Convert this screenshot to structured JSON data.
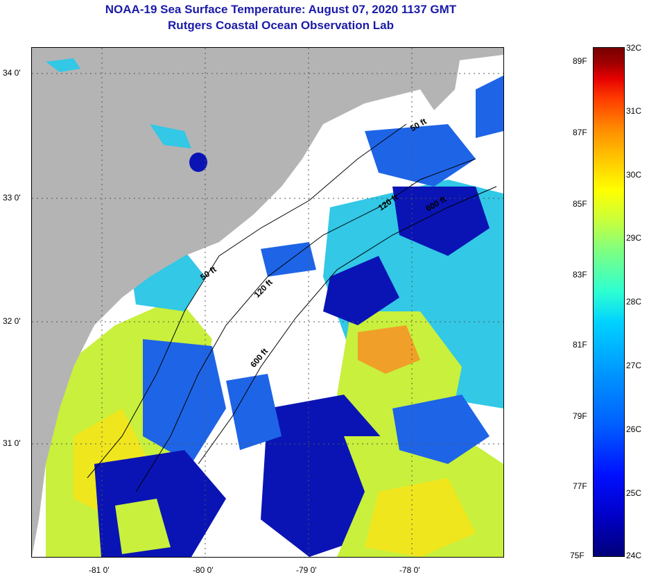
{
  "title": {
    "line1": "NOAA-19 Sea Surface Temperature:  August 07, 2020 1137 GMT",
    "line2": "Rutgers Coastal Ocean Observation Lab"
  },
  "axes": {
    "longitude_labels": [
      "-81 0'",
      "-80 0'",
      "-79 0'",
      "-78 0'"
    ],
    "latitude_labels": [
      "34 0'",
      "33 0'",
      "32 0'",
      "31 0'"
    ]
  },
  "contours": {
    "label_50": "50 ft",
    "label_120": "120 ft",
    "label_600": "600 ft"
  },
  "colorbar": {
    "fahrenheit": [
      "89F",
      "87F",
      "85F",
      "83F",
      "81F",
      "79F",
      "77F",
      "75F"
    ],
    "celsius": [
      "32C",
      "31C",
      "30C",
      "29C",
      "28C",
      "27C",
      "26C",
      "25C",
      "24C"
    ],
    "colors": [
      "#00007a",
      "#0010ff",
      "#0096ff",
      "#2dffd2",
      "#c8ff3c",
      "#ffff00",
      "#ff8c00",
      "#e60000",
      "#780000"
    ]
  },
  "map_colors": {
    "land": "#b4b4b4",
    "cloud": "#ffffff",
    "cold": "#0a14b4",
    "cool": "#1e64e6",
    "mid": "#32c8e6",
    "warm": "#c8f03c",
    "hot": "#f0e61e",
    "hottest": "#f0a028"
  }
}
